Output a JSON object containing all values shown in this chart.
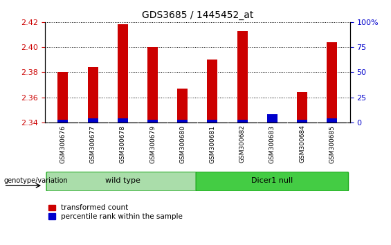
{
  "title": "GDS3685 / 1445452_at",
  "samples": [
    "GSM300676",
    "GSM300677",
    "GSM300678",
    "GSM300679",
    "GSM300680",
    "GSM300681",
    "GSM300682",
    "GSM300683",
    "GSM300684",
    "GSM300685"
  ],
  "red_values": [
    2.38,
    2.384,
    2.418,
    2.4,
    2.367,
    2.39,
    2.413,
    2.344,
    2.364,
    2.404
  ],
  "blue_pct": [
    3,
    4,
    4,
    3,
    3,
    3,
    3,
    8,
    3,
    4
  ],
  "ylim_left": [
    2.34,
    2.42
  ],
  "ylim_right": [
    0,
    100
  ],
  "yticks_left": [
    2.34,
    2.36,
    2.38,
    2.4,
    2.42
  ],
  "yticks_right": [
    0,
    25,
    50,
    75,
    100
  ],
  "ytick_labels_right": [
    "0",
    "25",
    "50",
    "75",
    "100%"
  ],
  "bar_bottom": 2.34,
  "group1_label": "wild type",
  "group2_label": "Dicer1 null",
  "group1_indices": [
    0,
    1,
    2,
    3,
    4
  ],
  "group2_indices": [
    5,
    6,
    7,
    8,
    9
  ],
  "group1_color": "#aaddaa",
  "group2_color": "#44cc44",
  "group_edge_color": "#22aa22",
  "red_color": "#cc0000",
  "blue_color": "#0000cc",
  "bar_width": 0.35,
  "left_tick_color": "#cc0000",
  "right_tick_color": "#0000cc",
  "legend_red": "transformed count",
  "legend_blue": "percentile rank within the sample",
  "genotype_label": "genotype/variation",
  "background_color": "#ffffff",
  "plot_bg_color": "#ffffff",
  "xticklabel_bg": "#d0d0d0"
}
